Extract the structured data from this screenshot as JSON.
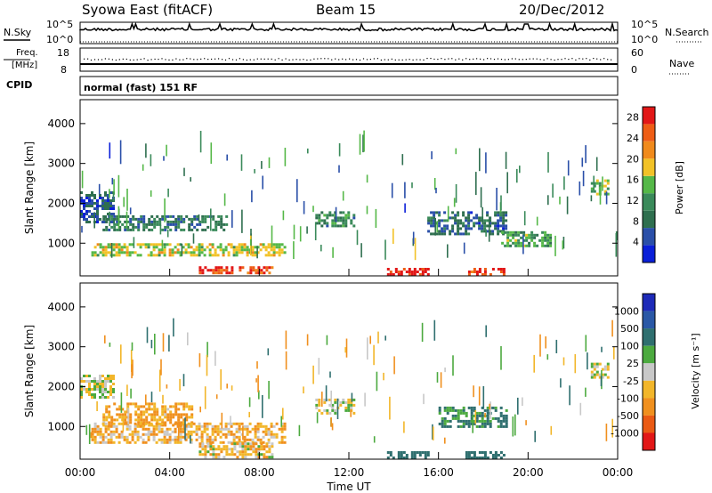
{
  "header": {
    "station": "Syowa East (fitACF)",
    "beam": "Beam 15",
    "date": "20/Dec/2012"
  },
  "top_panels": {
    "nsky_label": "N.Sky",
    "nsearch_label": "N.Search",
    "pow_high": "10^5",
    "pow_low": "10^0",
    "freq_label_line1": "Freq.",
    "freq_label_line2": "[MHz]",
    "freq_high": "18",
    "freq_low": "8",
    "nave_label": "Nave",
    "nave_high": "60",
    "nave_low": "0",
    "cpid_label": "CPID",
    "cpid_text": "normal (fast) 151 RF"
  },
  "colors": {
    "power_scale": [
      "#0a1fd8",
      "#2a4fa8",
      "#2f6f4f",
      "#3a8a5a",
      "#55b848",
      "#f2c227",
      "#f08a1c",
      "#ee5d15",
      "#e21717"
    ],
    "velocity_scale": [
      "#1d2ab8",
      "#2a58a6",
      "#2f6f6f",
      "#4caa3f",
      "#c8c8c8",
      "#f2b62a",
      "#f0901e",
      "#ea5a14",
      "#e21717"
    ]
  },
  "chart_data": [
    {
      "type": "heatmap",
      "name": "power",
      "xlabel": "",
      "ylabel": "Slant Range [km]",
      "x_ticks": [
        "00:00",
        "04:00",
        "08:00",
        "12:00",
        "16:00",
        "20:00",
        "00:00"
      ],
      "y_ticks": [
        1000,
        2000,
        3000,
        4000
      ],
      "ylim": [
        180,
        4600
      ],
      "colorbar_label": "Power [dB]",
      "colorbar_ticks": [
        4,
        8,
        12,
        16,
        20,
        24,
        28
      ],
      "colorbar_range": [
        0,
        30
      ],
      "regions": [
        {
          "t0": 0.0,
          "t1": 1.5,
          "r0": 1500,
          "r1": 2300,
          "v": 6
        },
        {
          "t0": 1.0,
          "t1": 6.5,
          "r0": 1300,
          "r1": 1700,
          "v": 9
        },
        {
          "t0": 0.5,
          "t1": 9.2,
          "r0": 700,
          "r1": 1000,
          "v": 17
        },
        {
          "t0": 5.3,
          "t1": 8.6,
          "r0": 230,
          "r1": 420,
          "v": 26
        },
        {
          "t0": 13.7,
          "t1": 15.6,
          "r0": 220,
          "r1": 380,
          "v": 28
        },
        {
          "t0": 17.2,
          "t1": 18.9,
          "r0": 220,
          "r1": 380,
          "v": 27
        },
        {
          "t0": 10.5,
          "t1": 12.2,
          "r0": 1400,
          "r1": 1800,
          "v": 10
        },
        {
          "t0": 15.5,
          "t1": 19.0,
          "r0": 1200,
          "r1": 1800,
          "v": 7
        },
        {
          "t0": 18.8,
          "t1": 21.0,
          "r0": 900,
          "r1": 1300,
          "v": 13
        },
        {
          "t0": 22.8,
          "t1": 23.6,
          "r0": 2200,
          "r1": 2600,
          "v": 15
        }
      ]
    },
    {
      "type": "heatmap",
      "name": "velocity",
      "xlabel": "Time UT",
      "ylabel": "Slant Range [km]",
      "x_ticks": [
        "00:00",
        "04:00",
        "08:00",
        "12:00",
        "16:00",
        "20:00",
        "00:00"
      ],
      "y_ticks": [
        1000,
        2000,
        3000,
        4000
      ],
      "ylim": [
        180,
        4600
      ],
      "colorbar_label": "Velocity [m s⁻¹]",
      "colorbar_ticks": [
        1000,
        500,
        100,
        25,
        -25,
        -100,
        -500,
        -1000
      ],
      "regions": [
        {
          "t0": 0.0,
          "t1": 1.5,
          "r0": 1700,
          "r1": 2300,
          "v": 0
        },
        {
          "t0": 1.0,
          "t1": 5.0,
          "r0": 1000,
          "r1": 1600,
          "v": -120
        },
        {
          "t0": 0.5,
          "t1": 9.2,
          "r0": 600,
          "r1": 1100,
          "v": -80
        },
        {
          "t0": 5.3,
          "t1": 8.6,
          "r0": 230,
          "r1": 600,
          "v": -60
        },
        {
          "t0": 13.7,
          "t1": 15.6,
          "r0": 220,
          "r1": 380,
          "v": 400
        },
        {
          "t0": 17.2,
          "t1": 18.9,
          "r0": 220,
          "r1": 380,
          "v": 300
        },
        {
          "t0": 10.5,
          "t1": 12.2,
          "r0": 1300,
          "r1": 1700,
          "v": 0
        },
        {
          "t0": 16.0,
          "t1": 19.0,
          "r0": 1000,
          "r1": 1500,
          "v": 150
        },
        {
          "t0": 22.8,
          "t1": 23.6,
          "r0": 2200,
          "r1": 2600,
          "v": 0
        }
      ]
    }
  ]
}
